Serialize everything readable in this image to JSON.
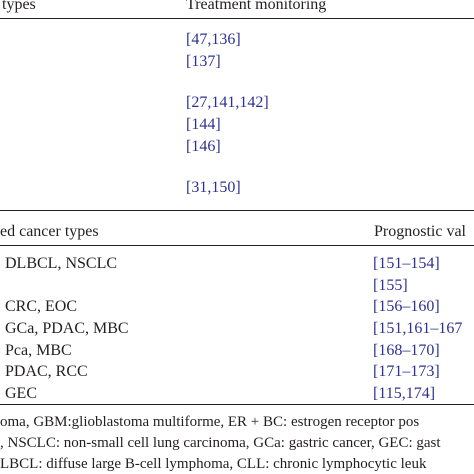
{
  "table1": {
    "header": {
      "col1": "types",
      "col2": "Treatment monitoring"
    },
    "refs": [
      "[47,136]",
      "[137]",
      "[27,141,142]",
      "[144]",
      "[146]",
      "[31,150]"
    ]
  },
  "table2": {
    "header": {
      "col1": "ed cancer types",
      "col2": "Prognostic val"
    },
    "rows": [
      {
        "types": "DLBCL, NSCLC",
        "refs": "[151–154]"
      },
      {
        "types": "",
        "refs": "[155]"
      },
      {
        "types": "CRC, EOC",
        "refs": "[156–160]"
      },
      {
        "types": "GCa, PDAC, MBC",
        "refs": "[151,161–167"
      },
      {
        "types": "Pca, MBC",
        "refs": "[168–170]"
      },
      {
        "types": "PDAC, RCC",
        "refs": "[171–173]"
      },
      {
        "types": "GEC",
        "refs": "[115,174]"
      }
    ]
  },
  "footnote": [
    "oma, GBM:glioblastoma multiforme, ER + BC: estrogen receptor pos",
    ", NSCLC: non-small cell lung carcinoma, GCa: gastric cancer, GEC: gast",
    "LBCL: diffuse large B-cell lymphoma, CLL: chronic lymphocytic leuk"
  ]
}
